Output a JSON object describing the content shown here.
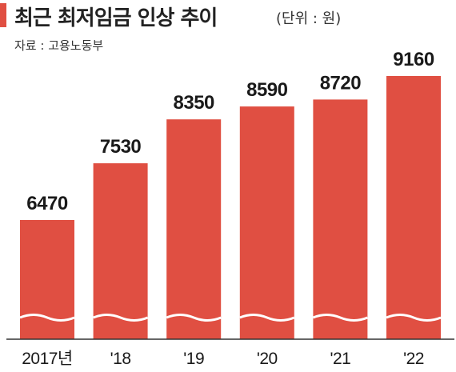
{
  "title": "최근 최저임금 인상 추이",
  "unit": "(단위 : 원)",
  "source": "자료 : 고용노동부",
  "colors": {
    "bar": "#e04f42",
    "axis": "#333333",
    "text": "#1a1a1a"
  },
  "chart_data": {
    "type": "bar",
    "categories": [
      "2017년",
      "'18",
      "'19",
      "'20",
      "'21",
      "'22"
    ],
    "values": [
      6470,
      7530,
      8350,
      8590,
      8720,
      9160
    ],
    "title": "최근 최저임금 인상 추이",
    "xlabel": "",
    "ylabel": "",
    "axis_break": true,
    "grid": false,
    "legend": "none"
  }
}
